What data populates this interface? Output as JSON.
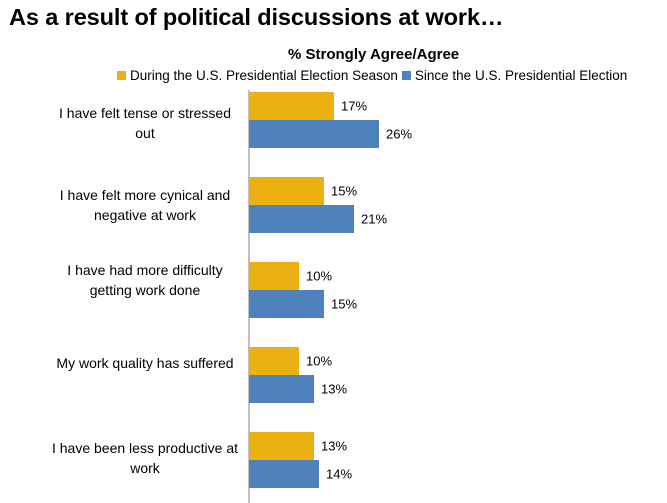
{
  "title": "As a result of political discussions at work…",
  "colors": {
    "series1": "#EBB011",
    "series2": "#4F81BD",
    "axis": "#808080"
  },
  "chart_data": {
    "type": "bar",
    "orientation": "horizontal",
    "title": "% Strongly Agree/Agree",
    "categories": [
      "I have felt tense or stressed out",
      "I have felt more cynical and negative at work",
      "I have had more difficulty getting work done",
      "My work quality has suffered",
      "I have been less productive at work"
    ],
    "series": [
      {
        "name": "During the U.S. Presidential Election Season",
        "values": [
          17,
          15,
          10,
          10,
          13
        ],
        "labels": [
          "17%",
          "15%",
          "10%",
          "10%",
          "13%"
        ]
      },
      {
        "name": "Since the U.S. Presidential Election",
        "values": [
          26,
          21,
          15,
          13,
          14
        ],
        "labels": [
          "26%",
          "21%",
          "15%",
          "13%",
          "14%"
        ]
      }
    ],
    "xlim": [
      0,
      85
    ],
    "legend_position": "top",
    "grid": false,
    "xlabel": "",
    "ylabel": ""
  }
}
